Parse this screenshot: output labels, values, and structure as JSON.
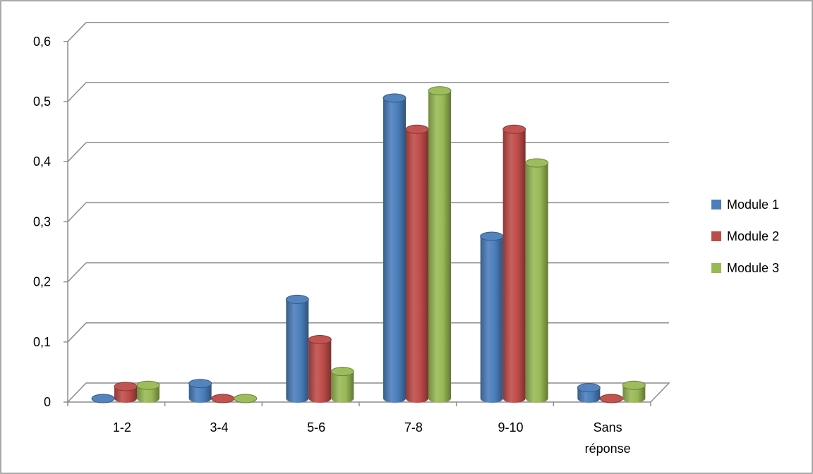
{
  "chart_data": {
    "type": "bar",
    "categories": [
      "1-2",
      "3-4",
      "5-6",
      "7-8",
      "9-10",
      "Sans réponse"
    ],
    "series": [
      {
        "name": "Module 1",
        "values": [
          0.0,
          0.025,
          0.165,
          0.5,
          0.27,
          0.018
        ],
        "color": "#4A7EBB"
      },
      {
        "name": "Module 2",
        "values": [
          0.02,
          0.0,
          0.098,
          0.448,
          0.448,
          0.0
        ],
        "color": "#BE4B48"
      },
      {
        "name": "Module 3",
        "values": [
          0.022,
          0.0,
          0.045,
          0.512,
          0.392,
          0.022
        ],
        "color": "#98B954"
      }
    ],
    "ylim": [
      0,
      0.6
    ],
    "yticks": [
      0,
      0.1,
      0.2,
      0.3,
      0.4,
      0.5,
      0.6
    ],
    "ytick_labels": [
      "0",
      "0,1",
      "0,2",
      "0,3",
      "0,4",
      "0,5",
      "0,6"
    ],
    "xtick_labels": [
      [
        "1-2"
      ],
      [
        "3-4"
      ],
      [
        "5-6"
      ],
      [
        "7-8"
      ],
      [
        "9-10"
      ],
      [
        "Sans",
        "réponse"
      ]
    ],
    "title": "",
    "xlabel": "",
    "ylabel": "",
    "grid": true,
    "legend_position": "right"
  }
}
